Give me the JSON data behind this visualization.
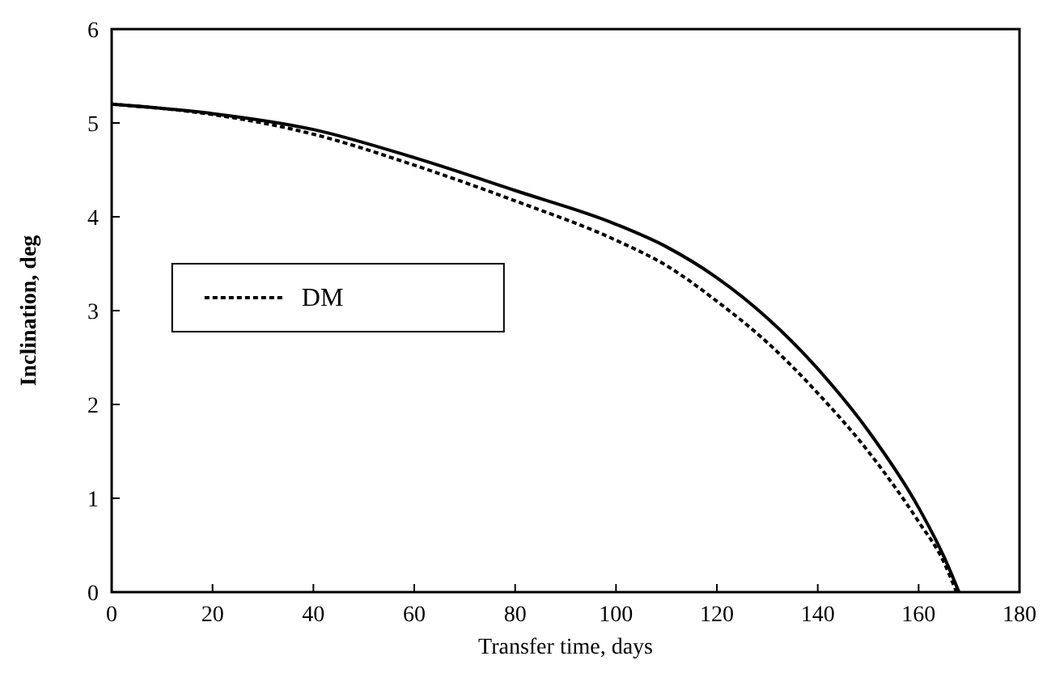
{
  "chart_data": {
    "type": "line",
    "xlabel": "Transfer time, days",
    "ylabel": "Inclination, deg",
    "xlim": [
      0,
      180
    ],
    "ylim": [
      0,
      6
    ],
    "xticks": [
      0,
      20,
      40,
      60,
      80,
      100,
      120,
      140,
      160,
      180
    ],
    "yticks": [
      0,
      1,
      2,
      3,
      4,
      5,
      6
    ],
    "legend": "left",
    "grid": false,
    "series": [
      {
        "color": "#000000",
        "line_style": "solid",
        "x": [
          0,
          20,
          40,
          60,
          80,
          100,
          110,
          120,
          130,
          140,
          150,
          160,
          165,
          168
        ],
        "values": [
          5.2,
          5.1,
          4.93,
          4.63,
          4.28,
          3.92,
          3.68,
          3.35,
          2.92,
          2.38,
          1.72,
          0.9,
          0.38,
          0
        ]
      },
      {
        "name": "DM",
        "color": "#000000",
        "line_style": "dotted",
        "x": [
          0,
          20,
          40,
          60,
          80,
          100,
          110,
          120,
          130,
          140,
          150,
          160,
          165,
          167.5
        ],
        "values": [
          5.2,
          5.09,
          4.88,
          4.55,
          4.17,
          3.75,
          3.48,
          3.1,
          2.66,
          2.12,
          1.5,
          0.75,
          0.32,
          0
        ]
      }
    ]
  }
}
